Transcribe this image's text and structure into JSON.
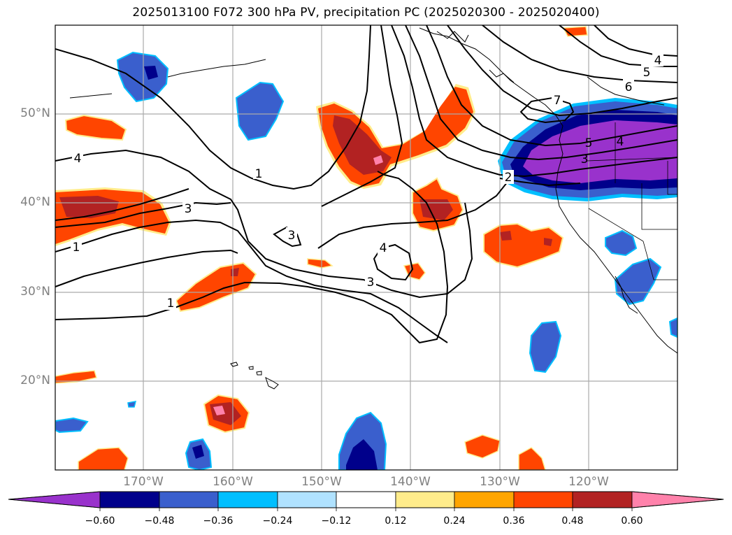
{
  "title": "2025013100 F072 300 hPa PV, precipitation PC (2025020300 - 2025020400)",
  "map": {
    "lon_range": [
      -180,
      -110
    ],
    "lat_range": [
      10,
      60
    ],
    "lat_labels": [
      "50°N",
      "40°N",
      "30°N",
      "20°N"
    ],
    "lon_labels": [
      "170°W",
      "160°W",
      "150°W",
      "140°W",
      "130°W",
      "120°W"
    ],
    "contour_labels": [
      "1",
      "3",
      "4",
      "1",
      "1",
      "3",
      "4",
      "3",
      "2",
      "3",
      "4",
      "5",
      "6",
      "7",
      "4",
      "5"
    ]
  },
  "colorbar": {
    "ticks": [
      "−0.60",
      "−0.48",
      "−0.36",
      "−0.24",
      "−0.12",
      "0.12",
      "0.24",
      "0.36",
      "0.48",
      "0.60"
    ],
    "colors": [
      "#9932CC",
      "#00008B",
      "#3A5FCD",
      "#00BFFF",
      "#B0E2FF",
      "#FFFFFF",
      "#FFEC8B",
      "#FFA500",
      "#FF4500",
      "#B22222",
      "#FF82AB"
    ]
  }
}
